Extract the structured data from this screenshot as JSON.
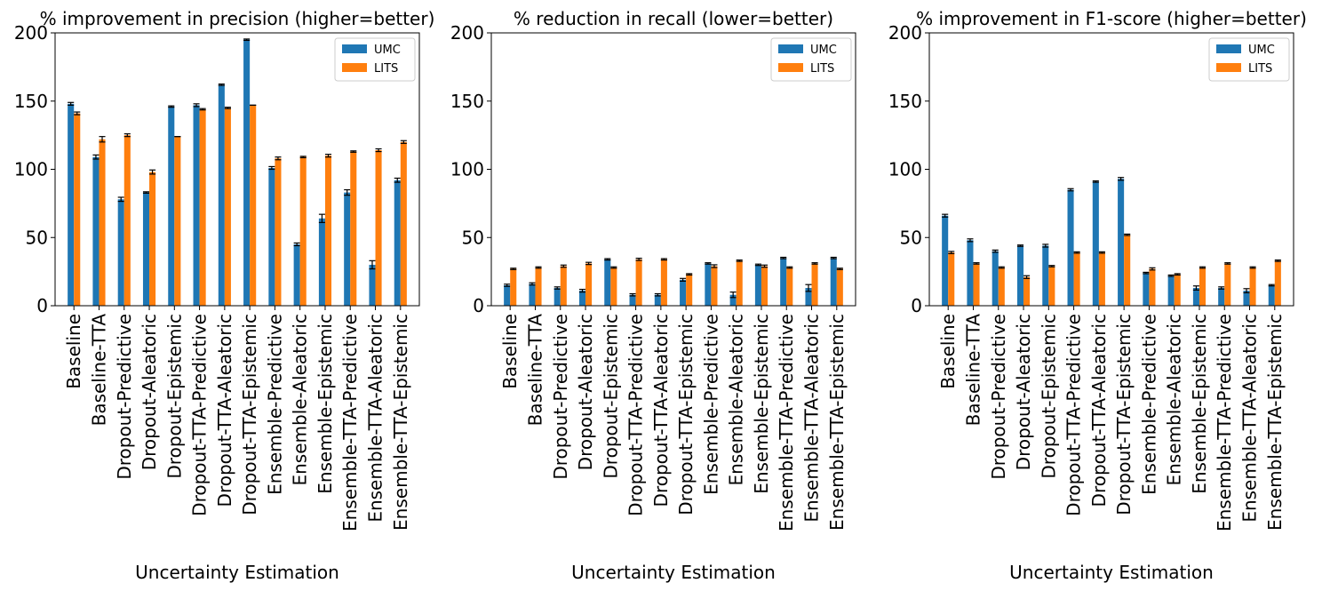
{
  "chart_data": [
    {
      "type": "bar",
      "title": "% improvement in precision (higher=better)",
      "xlabel": "Uncertainty Estimation",
      "ylabel": "",
      "ylim": [
        0,
        200
      ],
      "yticks": [
        0,
        50,
        100,
        150,
        200
      ],
      "legend": "top-right",
      "categories": [
        "Baseline",
        "Baseline-TTA",
        "Dropout-Predictive",
        "Dropout-Aleatoric",
        "Dropout-Epistemic",
        "Dropout-TTA-Predictive",
        "Dropout-TTA-Aleatoric",
        "Dropout-TTA-Epistemic",
        "Ensemble-Predictive",
        "Ensemble-Aleatoric",
        "Ensemble-Epistemic",
        "Ensemble-TTA-Predictive",
        "Ensemble-TTA-Aleatoric",
        "Ensemble-TTA-Epistemic"
      ],
      "series": [
        {
          "name": "UMC",
          "color": "#1f77b4",
          "values": [
            148,
            109,
            78,
            83,
            146,
            147,
            162,
            195,
            101,
            45,
            64,
            83,
            30,
            92
          ],
          "errors": [
            1,
            1.5,
            1.5,
            0.5,
            0.5,
            1,
            0.5,
            0.5,
            1,
            1,
            3,
            2,
            3,
            1.5
          ]
        },
        {
          "name": "LITS",
          "color": "#ff7f0e",
          "values": [
            141,
            122,
            125,
            98,
            124,
            144,
            145,
            147,
            108,
            109,
            110,
            113,
            114,
            120
          ],
          "errors": [
            1,
            2,
            1,
            1.5,
            0,
            0.5,
            0.5,
            0,
            1,
            0.5,
            1,
            0.5,
            1,
            1
          ]
        }
      ]
    },
    {
      "type": "bar",
      "title": "% reduction in recall (lower=better)",
      "xlabel": "Uncertainty Estimation",
      "ylabel": "",
      "ylim": [
        0,
        200
      ],
      "yticks": [
        0,
        50,
        100,
        150,
        200
      ],
      "legend": "top-right",
      "categories": [
        "Baseline",
        "Baseline-TTA",
        "Dropout-Predictive",
        "Dropout-Aleatoric",
        "Dropout-Epistemic",
        "Dropout-TTA-Predictive",
        "Dropout-TTA-Aleatoric",
        "Dropout-TTA-Epistemic",
        "Ensemble-Predictive",
        "Ensemble-Aleatoric",
        "Ensemble-Epistemic",
        "Ensemble-TTA-Predictive",
        "Ensemble-TTA-Aleatoric",
        "Ensemble-TTA-Epistemic"
      ],
      "series": [
        {
          "name": "UMC",
          "color": "#1f77b4",
          "values": [
            15,
            16,
            13,
            11,
            34,
            8,
            8,
            19,
            31,
            8,
            30,
            35,
            13,
            35
          ],
          "errors": [
            0.8,
            0.8,
            0.8,
            1,
            0.5,
            0.8,
            0.8,
            1,
            0.5,
            2,
            0.5,
            0.5,
            2.5,
            0.5
          ]
        },
        {
          "name": "LITS",
          "color": "#ff7f0e",
          "values": [
            27,
            28,
            29,
            31,
            28,
            34,
            34,
            23,
            29,
            33,
            29,
            28,
            31,
            27
          ],
          "errors": [
            0.5,
            0.5,
            0.8,
            0.8,
            0.5,
            0.8,
            0.5,
            0.5,
            1,
            0.5,
            0.8,
            0.5,
            0.5,
            0.5
          ]
        }
      ]
    },
    {
      "type": "bar",
      "title": "% improvement in F1-score (higher=better)",
      "xlabel": "Uncertainty Estimation",
      "ylabel": "",
      "ylim": [
        0,
        200
      ],
      "yticks": [
        0,
        50,
        100,
        150,
        200
      ],
      "legend": "top-right",
      "categories": [
        "Baseline",
        "Baseline-TTA",
        "Dropout-Predictive",
        "Dropout-Aleatoric",
        "Dropout-Epistemic",
        "Dropout-TTA-Predictive",
        "Dropout-TTA-Aleatoric",
        "Dropout-TTA-Epistemic",
        "Ensemble-Predictive",
        "Ensemble-Aleatoric",
        "Ensemble-Epistemic",
        "Ensemble-TTA-Predictive",
        "Ensemble-TTA-Aleatoric",
        "Ensemble-TTA-Epistemic"
      ],
      "series": [
        {
          "name": "UMC",
          "color": "#1f77b4",
          "values": [
            66,
            48,
            40,
            44,
            44,
            85,
            91,
            93,
            24,
            22,
            13,
            13,
            11,
            15
          ],
          "errors": [
            1,
            1,
            0.8,
            0.5,
            1,
            0.8,
            0.5,
            1,
            0.5,
            0.5,
            1.5,
            0.8,
            1.5,
            0.5
          ]
        },
        {
          "name": "LITS",
          "color": "#ff7f0e",
          "values": [
            39,
            31,
            28,
            21,
            29,
            39,
            39,
            52,
            27,
            23,
            28,
            31,
            28,
            33
          ],
          "errors": [
            0.8,
            0.5,
            0.5,
            1,
            0.5,
            0.5,
            0.5,
            0.5,
            0.8,
            0.5,
            0.5,
            0.5,
            0.5,
            0.5
          ]
        }
      ]
    }
  ]
}
